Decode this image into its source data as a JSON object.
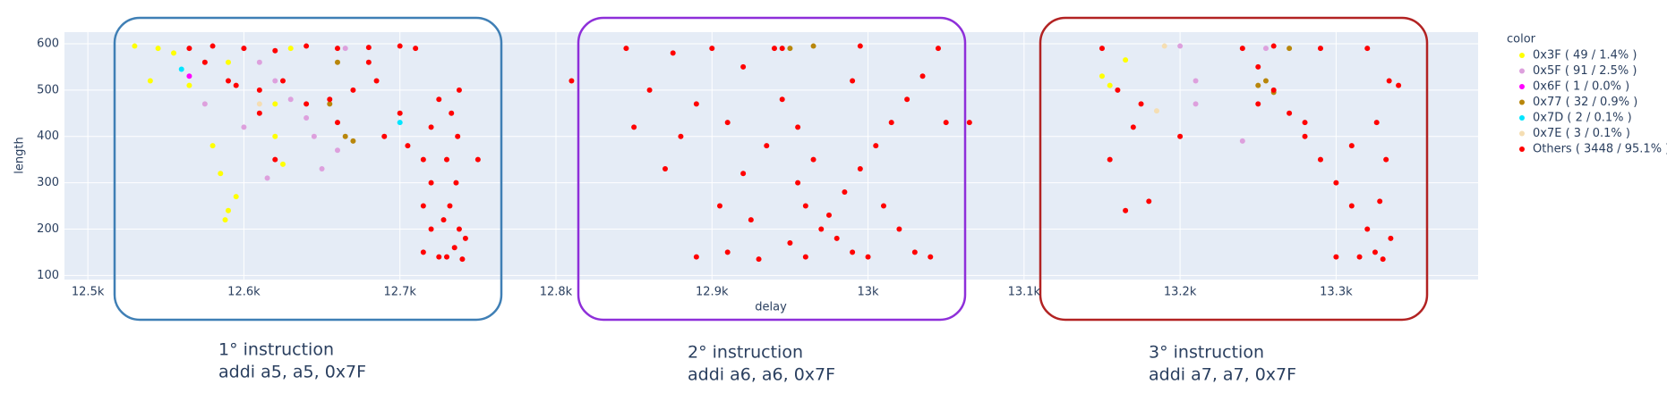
{
  "chart_data": {
    "type": "scatter",
    "x_label": "delay",
    "y_label": "length",
    "legend_title": "color",
    "xlim": [
      12485,
      13391
    ],
    "ylim": [
      91,
      625
    ],
    "xticks": [
      {
        "value": 12500,
        "label": "12.5k"
      },
      {
        "value": 12600,
        "label": "12.6k"
      },
      {
        "value": 12700,
        "label": "12.7k"
      },
      {
        "value": 12800,
        "label": "12.8k"
      },
      {
        "value": 12900,
        "label": "12.9k"
      },
      {
        "value": 13000,
        "label": "13k"
      },
      {
        "value": 13100,
        "label": "13.1k"
      },
      {
        "value": 13200,
        "label": "13.2k"
      },
      {
        "value": 13300,
        "label": "13.3k"
      }
    ],
    "yticks": [
      100,
      200,
      300,
      400,
      500,
      600
    ],
    "grid": true,
    "series": [
      {
        "name": "0x3F ( 49 / 1.4% )",
        "color": "#ffff00",
        "x": [
          12530,
          12540,
          12555,
          12565,
          12580,
          12585,
          12590,
          12588,
          12620,
          12620,
          12625,
          12590,
          12545,
          13150,
          13155,
          13165,
          12595,
          12630
        ],
        "values": [
          595,
          520,
          580,
          510,
          380,
          320,
          240,
          220,
          470,
          400,
          340,
          560,
          590,
          530,
          510,
          565,
          270,
          590
        ]
      },
      {
        "name": "0x5F ( 91 / 2.5% )",
        "color": "#dda0dd",
        "x": [
          12600,
          12610,
          12620,
          12630,
          12640,
          12645,
          12660,
          12665,
          12600,
          12615,
          12650,
          13200,
          13210,
          13240,
          13210,
          13255,
          12575
        ],
        "values": [
          590,
          560,
          520,
          480,
          440,
          400,
          370,
          590,
          420,
          310,
          330,
          595,
          520,
          390,
          470,
          590,
          470
        ]
      },
      {
        "name": "0x6F ( 1 / 0.0% )",
        "color": "#ff00ff",
        "x": [
          12565
        ],
        "values": [
          530
        ]
      },
      {
        "name": "0x77 ( 32 / 0.9% )",
        "color": "#b8860b",
        "x": [
          12655,
          12665,
          12670,
          12660,
          12950,
          12965,
          13250,
          13255,
          13260,
          13270
        ],
        "values": [
          470,
          400,
          390,
          560,
          590,
          595,
          510,
          520,
          495,
          590
        ]
      },
      {
        "name": "0x7D ( 2 / 0.1% )",
        "color": "#00e5ff",
        "x": [
          12560,
          12700
        ],
        "values": [
          545,
          430
        ]
      },
      {
        "name": "0x7E ( 3 / 0.1% )",
        "color": "#f5deb3",
        "x": [
          13190,
          13185,
          12610
        ],
        "values": [
          595,
          455,
          470
        ]
      },
      {
        "name": "Others ( 3448 / 95.1% )",
        "color": "#ff0000",
        "x": [
          12565,
          12580,
          12600,
          12620,
          12640,
          12660,
          12680,
          12700,
          12710,
          12595,
          12610,
          12625,
          12640,
          12655,
          12670,
          12685,
          12700,
          12690,
          12705,
          12715,
          12720,
          12715,
          12720,
          12715,
          12725,
          12730,
          12735,
          12738,
          12732,
          12736,
          12730,
          12737,
          12733,
          12738,
          12740,
          12742,
          12728,
          12750,
          12620,
          12610,
          12590,
          12660,
          12575,
          12680,
          12725,
          12720,
          12845,
          12860,
          12875,
          12890,
          12900,
          12910,
          12920,
          12935,
          12945,
          12955,
          12960,
          12970,
          12980,
          12990,
          13000,
          12960,
          12930,
          12910,
          12890,
          12950,
          12975,
          12985,
          12995,
          13005,
          13015,
          13025,
          13035,
          13045,
          13030,
          13040,
          13020,
          13010,
          12965,
          12955,
          12945,
          12925,
          12905,
          12880,
          12850,
          12870,
          12920,
          12990,
          12940,
          12995,
          13050,
          12810,
          13065,
          13150,
          13160,
          13170,
          13155,
          13165,
          13180,
          13200,
          13175,
          13240,
          13250,
          13260,
          13270,
          13280,
          13290,
          13300,
          13310,
          13320,
          13325,
          13330,
          13335,
          13328,
          13332,
          13326,
          13334,
          13320,
          13290,
          13260,
          13300,
          13315,
          13280,
          13250,
          13310,
          13340
        ],
        "values": [
          590,
          595,
          590,
          585,
          595,
          590,
          592,
          595,
          590,
          510,
          500,
          520,
          470,
          480,
          500,
          520,
          450,
          400,
          380,
          350,
          300,
          250,
          200,
          150,
          140,
          140,
          160,
          200,
          250,
          300,
          350,
          400,
          450,
          500,
          135,
          180,
          220,
          350,
          350,
          450,
          520,
          430,
          560,
          560,
          480,
          420,
          590,
          500,
          580,
          470,
          590,
          430,
          550,
          380,
          590,
          300,
          250,
          200,
          180,
          150,
          140,
          140,
          135,
          150,
          140,
          170,
          230,
          280,
          330,
          380,
          430,
          480,
          530,
          590,
          150,
          140,
          200,
          250,
          350,
          420,
          480,
          220,
          250,
          400,
          420,
          330,
          320,
          520,
          590,
          595,
          430,
          520,
          430,
          590,
          500,
          420,
          350,
          240,
          260,
          400,
          470,
          590,
          550,
          500,
          450,
          400,
          350,
          300,
          250,
          200,
          150,
          135,
          180,
          260,
          350,
          430,
          520,
          590,
          590,
          595,
          140,
          140,
          430,
          470,
          380,
          510
        ]
      }
    ]
  },
  "annotations": [
    {
      "title": "1° instruction",
      "code": "addi a5, a5, 0x7F",
      "color": "#3f7fb5"
    },
    {
      "title": "2° instruction",
      "code": "addi a6, a6, 0x7F",
      "color": "#8e2fd9"
    },
    {
      "title": "3° instruction",
      "code": "addi a7, a7, 0x7F",
      "color": "#b22222"
    }
  ]
}
